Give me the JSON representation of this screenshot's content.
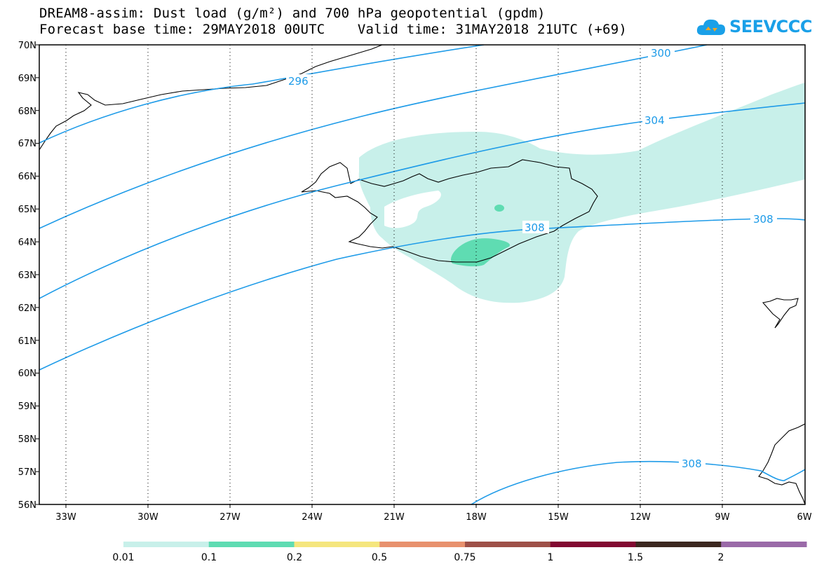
{
  "title_line1": "DREAM8-assim: Dust load (g/m²) and 700 hPa geopotential (gpdm)",
  "title_line2": "Forecast base time: 29MAY2018 00UTC    Valid time: 31MAY2018 21UTC (+69)",
  "logo_text": "SEEVCCC",
  "lat_labels": [
    "70N",
    "69N",
    "68N",
    "67N",
    "66N",
    "65N",
    "64N",
    "63N",
    "62N",
    "61N",
    "60N",
    "59N",
    "58N",
    "57N",
    "56N"
  ],
  "lon_labels": [
    "33W",
    "30W",
    "27W",
    "24W",
    "21W",
    "18W",
    "15W",
    "12W",
    "9W",
    "6W"
  ],
  "contour_labels": [
    "296",
    "300",
    "304",
    "308",
    "308",
    "308"
  ],
  "colorbar": {
    "colors": [
      "#c8f0ea",
      "#5fdcb2",
      "#f5e67e",
      "#e8916e",
      "#9e5048",
      "#820a32",
      "#3c2820",
      "#9a6aa8"
    ],
    "labels": [
      "0.01",
      "0.1",
      "0.2",
      "0.5",
      "0.75",
      "1",
      "1.5",
      "2"
    ]
  },
  "colors": {
    "contour": "#1e9be8",
    "dust_low": "#c8f0ea",
    "dust_mid": "#5fdcb2"
  }
}
